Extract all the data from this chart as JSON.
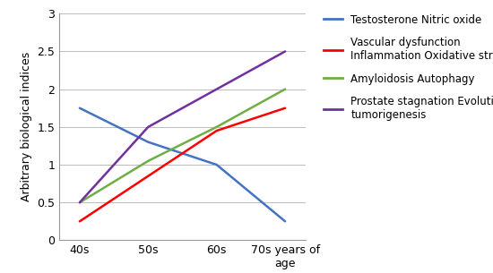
{
  "x_labels": [
    "40s",
    "50s",
    "60s",
    "70s years of\nage"
  ],
  "x_positions": [
    0,
    1,
    2,
    3
  ],
  "series": [
    {
      "name": "Testosterone Nitric oxide",
      "color": "#4472C4",
      "y": [
        1.75,
        1.3,
        1.0,
        0.25
      ]
    },
    {
      "name": "Vascular dysfunction\nInflammation Oxidative stress",
      "color": "#FF0000",
      "y": [
        0.25,
        0.85,
        1.45,
        1.75
      ]
    },
    {
      "name": "Amyloidosis Autophagy",
      "color": "#70AD47",
      "y": [
        0.5,
        1.05,
        1.5,
        2.0
      ]
    },
    {
      "name": "Prostate stagnation Evolutionary\ntumorigenesis",
      "color": "#7030A0",
      "y": [
        0.5,
        1.5,
        2.0,
        2.5
      ]
    }
  ],
  "ylabel": "Arbitrary biological indices",
  "ylim": [
    0,
    3
  ],
  "yticks": [
    0,
    0.5,
    1.0,
    1.5,
    2.0,
    2.5,
    3.0
  ],
  "grid_color": "#BBBBBB",
  "bg_color": "#FFFFFF",
  "legend_fontsize": 8.5,
  "axis_label_fontsize": 9,
  "tick_fontsize": 9
}
